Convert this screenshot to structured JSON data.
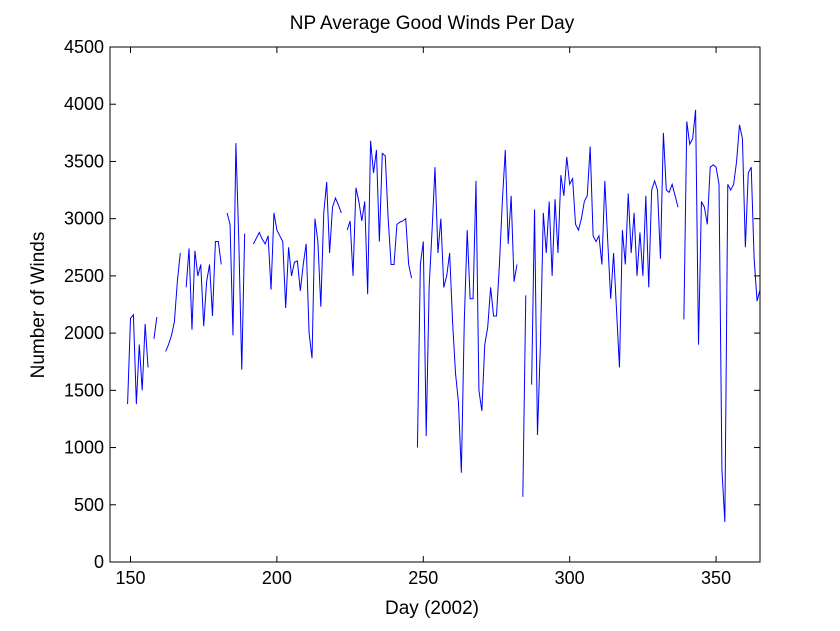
{
  "chart_data": {
    "type": "line",
    "title": "NP Average Good Winds Per Day",
    "xlabel": "Day (2002)",
    "ylabel": "Number of Winds",
    "xlim": [
      143,
      365
    ],
    "xticks": [
      150,
      200,
      250,
      300,
      350
    ],
    "ylim": [
      0,
      4500
    ],
    "yticks": [
      0,
      500,
      1000,
      1500,
      2000,
      2500,
      3000,
      3500,
      4000,
      4500
    ],
    "grid": false,
    "x": [
      149,
      150,
      151,
      152,
      153,
      154,
      155,
      156,
      157,
      158,
      159,
      160,
      161,
      162,
      163,
      164,
      165,
      166,
      167,
      168,
      169,
      170,
      171,
      172,
      173,
      174,
      175,
      176,
      177,
      178,
      179,
      180,
      181,
      182,
      183,
      184,
      185,
      186,
      187,
      188,
      189,
      190,
      191,
      192,
      193,
      194,
      195,
      196,
      197,
      198,
      199,
      200,
      201,
      202,
      203,
      204,
      205,
      206,
      207,
      208,
      209,
      210,
      211,
      212,
      213,
      214,
      215,
      216,
      217,
      218,
      219,
      220,
      221,
      222,
      223,
      224,
      225,
      226,
      227,
      228,
      229,
      230,
      231,
      232,
      233,
      234,
      235,
      236,
      237,
      238,
      239,
      240,
      241,
      242,
      243,
      244,
      245,
      246,
      247,
      248,
      249,
      250,
      251,
      252,
      253,
      254,
      255,
      256,
      257,
      258,
      259,
      260,
      261,
      262,
      263,
      264,
      265,
      266,
      267,
      268,
      269,
      270,
      271,
      272,
      273,
      274,
      275,
      276,
      277,
      278,
      279,
      280,
      281,
      282,
      283,
      284,
      285,
      286,
      287,
      288,
      289,
      290,
      291,
      292,
      293,
      294,
      295,
      296,
      297,
      298,
      299,
      300,
      301,
      302,
      303,
      304,
      305,
      306,
      307,
      308,
      309,
      310,
      311,
      312,
      313,
      314,
      315,
      316,
      317,
      318,
      319,
      320,
      321,
      322,
      323,
      324,
      325,
      326,
      327,
      328,
      329,
      330,
      331,
      332,
      333,
      334,
      335,
      336,
      337,
      338,
      339,
      340,
      341,
      342,
      343,
      344,
      345,
      346,
      347,
      348,
      349,
      350,
      351,
      352,
      353,
      354,
      355,
      356,
      357,
      358,
      359,
      360,
      361,
      362,
      363,
      364,
      365
    ],
    "series": [
      {
        "name": "Good Winds",
        "color": "#0000ff",
        "values": [
          1380,
          2130,
          2160,
          1380,
          1900,
          1500,
          2080,
          1700,
          null,
          1950,
          2140,
          null,
          null,
          1840,
          1900,
          1980,
          2100,
          2450,
          2700,
          null,
          2400,
          2740,
          2030,
          2720,
          2500,
          2600,
          2060,
          2450,
          2600,
          2150,
          2800,
          2800,
          2600,
          null,
          3050,
          2950,
          1980,
          3660,
          2800,
          1680,
          2870,
          null,
          null,
          2780,
          2830,
          2880,
          2820,
          2780,
          2850,
          2380,
          3050,
          2900,
          2850,
          2800,
          2220,
          2750,
          2500,
          2620,
          2630,
          2370,
          2600,
          2780,
          2000,
          1780,
          3000,
          2800,
          2230,
          3050,
          3320,
          2700,
          3100,
          3180,
          3120,
          3050,
          null,
          2900,
          2980,
          2500,
          3270,
          3150,
          2980,
          3150,
          2340,
          3680,
          3400,
          3600,
          2800,
          3570,
          3550,
          3000,
          2600,
          2600,
          2950,
          2970,
          2980,
          3000,
          2600,
          2480,
          null,
          1000,
          2600,
          2800,
          1100,
          2400,
          2900,
          3450,
          2700,
          3000,
          2400,
          2500,
          2700,
          2100,
          1650,
          1400,
          780,
          2100,
          2900,
          2300,
          2300,
          3330,
          1500,
          1320,
          1900,
          2050,
          2400,
          2150,
          2150,
          2600,
          3150,
          3600,
          2780,
          3200,
          2450,
          2600,
          null,
          570,
          2330,
          null,
          1550,
          3080,
          1110,
          1900,
          3050,
          2700,
          3150,
          2500,
          3170,
          2700,
          3380,
          3200,
          3540,
          3300,
          3350,
          2950,
          2900,
          3000,
          3150,
          3200,
          3630,
          2850,
          2800,
          2850,
          2600,
          3330,
          2800,
          2300,
          2700,
          2200,
          1700,
          2900,
          2600,
          3220,
          2700,
          3050,
          2500,
          2880,
          2500,
          3200,
          2400,
          3250,
          3330,
          3250,
          2650,
          3750,
          3250,
          3230,
          3300,
          3200,
          3100,
          null,
          2120,
          3850,
          3650,
          3700,
          3950,
          1900,
          3150,
          3100,
          2950,
          3450,
          3470,
          3450,
          3300,
          800,
          350,
          3300,
          3250,
          3300,
          3500,
          3820,
          3700,
          2750,
          3400,
          3450,
          2650,
          2280,
          2380
        ]
      }
    ]
  }
}
